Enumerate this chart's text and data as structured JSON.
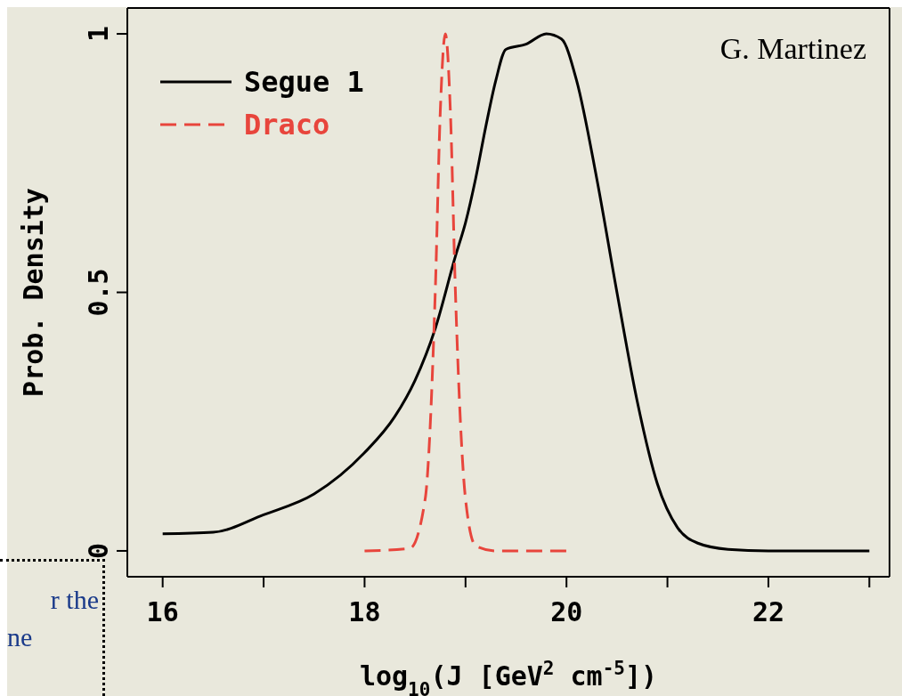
{
  "chart_data": {
    "type": "line",
    "xlabel": "log$_{10}$(J [GeV$^{2}$ cm$^{-5}$])",
    "ylabel": "Prob. Density",
    "annotations": [
      "G. Martinez",
      "r the",
      "ne"
    ],
    "xlim": [
      15.65,
      23.2
    ],
    "ylim": [
      -0.05,
      1.05
    ],
    "xticks": [
      16,
      {
        "value": 17,
        "label": null
      },
      18,
      {
        "value": 19,
        "label": null
      },
      20,
      {
        "value": 21,
        "label": null
      },
      22,
      {
        "value": 23,
        "label": null
      }
    ],
    "yticks": [
      0,
      0.5,
      1
    ],
    "legend": "top left",
    "grid": false,
    "marker": "none",
    "series": [
      {
        "name": "Segue 1",
        "color": "#000000",
        "line_style": "solid",
        "x": [
          16,
          16.5,
          17,
          17.5,
          18,
          18.3,
          18.5,
          18.7,
          18.9,
          19.0,
          19.1,
          19.2,
          19.3,
          19.4,
          19.6,
          19.8,
          19.95,
          20.1,
          20.3,
          20.5,
          20.7,
          20.9,
          21.1,
          21.3,
          21.6,
          22,
          23
        ],
        "values": [
          0.033,
          0.036,
          0.07,
          0.11,
          0.19,
          0.26,
          0.33,
          0.43,
          0.57,
          0.635,
          0.72,
          0.82,
          0.91,
          0.97,
          0.98,
          1.0,
          0.99,
          0.91,
          0.72,
          0.5,
          0.29,
          0.13,
          0.045,
          0.015,
          0.003,
          0,
          0
        ]
      },
      {
        "name": "Draco",
        "color": "#e8453c",
        "line_style": "dashed",
        "x": [
          18,
          18.45,
          18.6,
          18.7,
          18.75,
          18.8,
          18.85,
          18.9,
          19.0,
          19.1,
          19.3,
          20
        ],
        "values": [
          0,
          0.005,
          0.1,
          0.5,
          0.85,
          1.0,
          0.85,
          0.5,
          0.1,
          0.01,
          0,
          0
        ]
      }
    ]
  }
}
